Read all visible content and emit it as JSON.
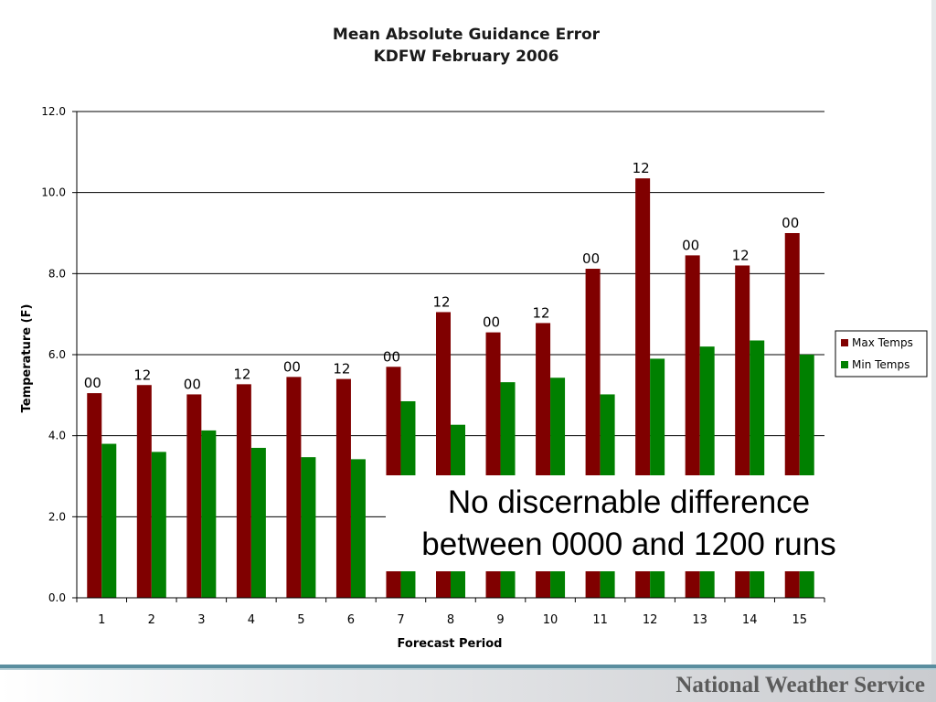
{
  "slide": {
    "footer_text": "National Weather Service"
  },
  "callout": {
    "line1": "No discernable difference",
    "line2": "between 0000 and 1200 runs"
  },
  "chart_data": {
    "type": "bar",
    "title": [
      "Mean Absolute Guidance Error",
      "KDFW February 2006"
    ],
    "xlabel": "Forecast Period",
    "ylabel": "Temperature (F)",
    "ylim": [
      0,
      12
    ],
    "y_ticks": [
      "0.0",
      "2.0",
      "4.0",
      "6.0",
      "8.0",
      "10.0",
      "12.0"
    ],
    "grid": true,
    "legend_position": "right",
    "categories": [
      "1",
      "2",
      "3",
      "4",
      "5",
      "6",
      "7",
      "8",
      "9",
      "10",
      "11",
      "12",
      "13",
      "14",
      "15"
    ],
    "series": [
      {
        "name": "Max Temps",
        "color": "#800000",
        "values": [
          5.05,
          5.25,
          5.02,
          5.27,
          5.45,
          5.4,
          5.7,
          7.05,
          6.55,
          6.78,
          8.12,
          10.35,
          8.45,
          8.2,
          9.0
        ]
      },
      {
        "name": "Min Temps",
        "color": "#008000",
        "values": [
          3.8,
          3.6,
          4.13,
          3.7,
          3.47,
          3.42,
          4.85,
          4.27,
          5.32,
          5.43,
          5.02,
          5.9,
          6.2,
          6.35,
          6.0
        ]
      }
    ],
    "bar_annotations": [
      "00",
      "12",
      "00",
      "12",
      "00",
      "12",
      "00",
      "12",
      "00",
      "12",
      "00",
      "12",
      "00",
      "12",
      "00"
    ]
  }
}
